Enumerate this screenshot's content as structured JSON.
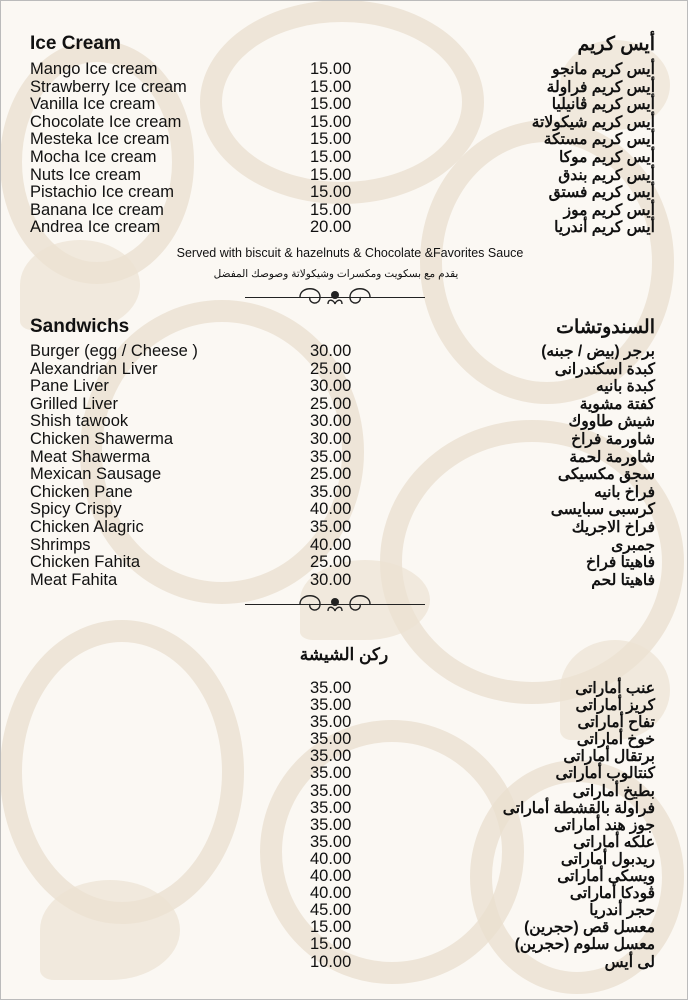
{
  "ice_cream": {
    "title_en": "Ice Cream",
    "title_ar": "أيس كريم",
    "items": [
      {
        "en": "Mango Ice cream",
        "price": "15.00",
        "ar": "أيس كريم مانجو"
      },
      {
        "en": "Strawberry Ice cream",
        "price": "15.00",
        "ar": "أيس كريم فراولة"
      },
      {
        "en": "Vanilla Ice cream",
        "price": "15.00",
        "ar": "أيس كريم ڤانيليا"
      },
      {
        "en": "Chocolate Ice cream",
        "price": "15.00",
        "ar": "أيس كريم شيكولاتة"
      },
      {
        "en": "Mesteka Ice cream",
        "price": "15.00",
        "ar": "أيس كريم مستكة"
      },
      {
        "en": "Mocha Ice cream",
        "price": "15.00",
        "ar": "أيس كريم موكا"
      },
      {
        "en": "Nuts Ice cream",
        "price": "15.00",
        "ar": "أيس كريم بندق"
      },
      {
        "en": "Pistachio Ice cream",
        "price": "15.00",
        "ar": "أيس كريم فستق"
      },
      {
        "en": "Banana Ice cream",
        "price": "15.00",
        "ar": "أيس كريم موز"
      },
      {
        "en": "Andrea Ice cream",
        "price": "20.00",
        "ar": "أيس كريم أندريا"
      }
    ],
    "note_en": "Served with biscuit & hazelnuts & Chocolate &Favorites Sauce",
    "note_ar": "يقدم مع بسكويت ومكسرات وشيكولاتة وصوصك المفضل"
  },
  "sandwiches": {
    "title_en": "Sandwichs",
    "title_ar": "السندوتشات",
    "items": [
      {
        "en": "Burger (egg / Cheese )",
        "price": "30.00",
        "ar": "برجر (بيض / جبنه)"
      },
      {
        "en": "Alexandrian Liver",
        "price": "25.00",
        "ar": "كبدة اسكندرانى"
      },
      {
        "en": "Pane Liver",
        "price": "30.00",
        "ar": "كبدة بانيه"
      },
      {
        "en": "Grilled Liver",
        "price": "25.00",
        "ar": "كفتة مشوية"
      },
      {
        "en": "Shish tawook",
        "price": "30.00",
        "ar": "شيش طاووك"
      },
      {
        "en": "Chicken Shawerma",
        "price": "30.00",
        "ar": "شاورمة فراخ"
      },
      {
        "en": "Meat Shawerma",
        "price": "35.00",
        "ar": "شاورمة لحمة"
      },
      {
        "en": "Mexican Sausage",
        "price": "25.00",
        "ar": "سجق مكسيكى"
      },
      {
        "en": "Chicken Pane",
        "price": "35.00",
        "ar": "فراخ بانيه"
      },
      {
        "en": "Spicy Crispy",
        "price": "40.00",
        "ar": "كرسبى سبايسى"
      },
      {
        "en": "Chicken Alagric",
        "price": "35.00",
        "ar": "فراخ الاجريك"
      },
      {
        "en": "Shrimps",
        "price": "40.00",
        "ar": "جمبرى"
      },
      {
        "en": "Chicken Fahita",
        "price": "25.00",
        "ar": "فاهيتا فراخ"
      },
      {
        "en": "Meat Fahita",
        "price": "30.00",
        "ar": "فاهيتا لحم"
      }
    ]
  },
  "shisha": {
    "title_ar": "ركن الشيشة",
    "items": [
      {
        "price": "35.00",
        "ar": "عنب أماراتى"
      },
      {
        "price": "35.00",
        "ar": "كريز أماراتى"
      },
      {
        "price": "35.00",
        "ar": "تفاح أماراتى"
      },
      {
        "price": "35.00",
        "ar": "خوخ أماراتى"
      },
      {
        "price": "35.00",
        "ar": "برتقال أماراتى"
      },
      {
        "price": "35.00",
        "ar": "كنتالوب أماراتى"
      },
      {
        "price": "35.00",
        "ar": "بطيخ أماراتى"
      },
      {
        "price": "35.00",
        "ar": "فراولة بالقشطة أماراتى"
      },
      {
        "price": "35.00",
        "ar": "جوز هند أماراتى"
      },
      {
        "price": "35.00",
        "ar": "علكه أماراتى"
      },
      {
        "price": "40.00",
        "ar": "ريدبول أماراتى"
      },
      {
        "price": "40.00",
        "ar": "ويسكى أماراتى"
      },
      {
        "price": "40.00",
        "ar": "ڤودكا أماراتى"
      },
      {
        "price": "45.00",
        "ar": "حجر أندريا"
      },
      {
        "price": "15.00",
        "ar": "معسل قص (حجرين)"
      },
      {
        "price": "15.00",
        "ar": "معسل سلوم (حجرين)"
      },
      {
        "price": "10.00",
        "ar": "لى أيس"
      }
    ]
  },
  "colors": {
    "background": "#fbf8f3",
    "pattern": "#eadfcf",
    "text": "#111111"
  }
}
